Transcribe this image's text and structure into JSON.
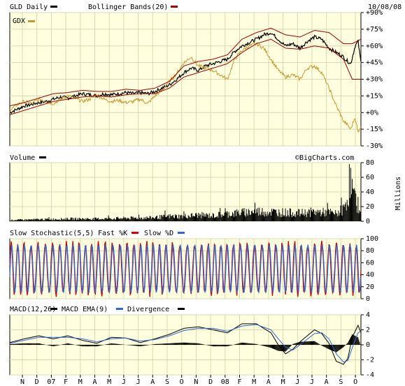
{
  "chart_data": [
    {
      "type": "line",
      "panel": "price",
      "date_label": "10/08/08",
      "watermark": "©BigCharts.com",
      "legend": [
        {
          "label": "GLD Daily",
          "color": "#000000"
        },
        {
          "label": "Bollinger Bands(20)",
          "color": "#990000"
        },
        {
          "label": "GDX",
          "color": "#c49a2c"
        }
      ],
      "y_unit": "%",
      "ylim": [
        -30,
        90
      ],
      "yticks": [
        "+90%",
        "+75%",
        "+60%",
        "+45%",
        "+30%",
        "+15%",
        "+0%",
        "-15%",
        "-30%"
      ],
      "series": [
        {
          "name": "GLD Daily",
          "color": "#000000",
          "points": [
            [
              0,
              0
            ],
            [
              5,
              3
            ],
            [
              10,
              6
            ],
            [
              14,
              7
            ],
            [
              20,
              9
            ],
            [
              25,
              10
            ],
            [
              30,
              12
            ],
            [
              35,
              14
            ],
            [
              40,
              13
            ],
            [
              45,
              15
            ],
            [
              50,
              17
            ],
            [
              55,
              16
            ],
            [
              60,
              15
            ],
            [
              65,
              17
            ],
            [
              70,
              16
            ],
            [
              75,
              17
            ],
            [
              80,
              18
            ],
            [
              85,
              17
            ],
            [
              90,
              18
            ],
            [
              95,
              17
            ],
            [
              100,
              19
            ],
            [
              105,
              22
            ],
            [
              110,
              25
            ],
            [
              115,
              30
            ],
            [
              120,
              36
            ],
            [
              125,
              40
            ],
            [
              130,
              38
            ],
            [
              135,
              42
            ],
            [
              140,
              44
            ],
            [
              145,
              46
            ],
            [
              150,
              48
            ],
            [
              155,
              55
            ],
            [
              160,
              60
            ],
            [
              165,
              63
            ],
            [
              170,
              66
            ],
            [
              175,
              70
            ],
            [
              180,
              72
            ],
            [
              185,
              66
            ],
            [
              190,
              60
            ],
            [
              195,
              62
            ],
            [
              200,
              58
            ],
            [
              205,
              64
            ],
            [
              210,
              68
            ],
            [
              215,
              66
            ],
            [
              220,
              58
            ],
            [
              225,
              54
            ],
            [
              228,
              52
            ],
            [
              230,
              50
            ],
            [
              232,
              47
            ],
            [
              235,
              44
            ],
            [
              238,
              60
            ],
            [
              240,
              64
            ],
            [
              242,
              45
            ]
          ]
        },
        {
          "name": "GDX",
          "color": "#c49a2c",
          "points": [
            [
              0,
              2
            ],
            [
              5,
              7
            ],
            [
              10,
              10
            ],
            [
              15,
              8
            ],
            [
              20,
              12
            ],
            [
              25,
              10
            ],
            [
              30,
              8
            ],
            [
              35,
              12
            ],
            [
              40,
              15
            ],
            [
              45,
              13
            ],
            [
              50,
              10
            ],
            [
              55,
              12
            ],
            [
              60,
              16
            ],
            [
              65,
              12
            ],
            [
              70,
              10
            ],
            [
              75,
              11
            ],
            [
              80,
              9
            ],
            [
              85,
              10
            ],
            [
              90,
              12
            ],
            [
              95,
              8
            ],
            [
              100,
              15
            ],
            [
              105,
              20
            ],
            [
              110,
              28
            ],
            [
              115,
              35
            ],
            [
              120,
              45
            ],
            [
              125,
              50
            ],
            [
              130,
              42
            ],
            [
              135,
              40
            ],
            [
              140,
              38
            ],
            [
              145,
              34
            ],
            [
              150,
              30
            ],
            [
              155,
              48
            ],
            [
              160,
              56
            ],
            [
              165,
              60
            ],
            [
              170,
              62
            ],
            [
              175,
              58
            ],
            [
              180,
              48
            ],
            [
              185,
              38
            ],
            [
              190,
              32
            ],
            [
              195,
              34
            ],
            [
              200,
              30
            ],
            [
              205,
              40
            ],
            [
              210,
              42
            ],
            [
              215,
              36
            ],
            [
              220,
              22
            ],
            [
              225,
              6
            ],
            [
              228,
              -2
            ],
            [
              230,
              -8
            ],
            [
              232,
              -10
            ],
            [
              235,
              -15
            ],
            [
              238,
              -4
            ],
            [
              240,
              -18
            ],
            [
              242,
              -12
            ]
          ]
        },
        {
          "name": "Bollinger Bands(20)",
          "color": "#990000",
          "points": [
            [
              0,
              -2
            ],
            [
              10,
              2
            ],
            [
              20,
              6
            ],
            [
              30,
              10
            ],
            [
              40,
              12
            ],
            [
              50,
              14
            ],
            [
              60,
              15
            ],
            [
              70,
              14
            ],
            [
              80,
              16
            ],
            [
              90,
              17
            ],
            [
              100,
              17
            ],
            [
              110,
              22
            ],
            [
              120,
              32
            ],
            [
              130,
              36
            ],
            [
              140,
              40
            ],
            [
              150,
              44
            ],
            [
              160,
              54
            ],
            [
              170,
              62
            ],
            [
              180,
              66
            ],
            [
              190,
              58
            ],
            [
              200,
              57
            ],
            [
              210,
              60
            ],
            [
              220,
              58
            ],
            [
              230,
              48
            ],
            [
              236,
              30
            ],
            [
              242,
              30
            ]
          ]
        },
        {
          "name": "Bollinger Bands(20)",
          "color": "#990000",
          "points": [
            [
              0,
              6
            ],
            [
              10,
              9
            ],
            [
              20,
              13
            ],
            [
              30,
              17
            ],
            [
              40,
              18
            ],
            [
              50,
              20
            ],
            [
              60,
              19
            ],
            [
              70,
              19
            ],
            [
              80,
              21
            ],
            [
              90,
              20
            ],
            [
              100,
              22
            ],
            [
              110,
              28
            ],
            [
              120,
              42
            ],
            [
              130,
              46
            ],
            [
              140,
              48
            ],
            [
              150,
              52
            ],
            [
              160,
              66
            ],
            [
              170,
              72
            ],
            [
              180,
              76
            ],
            [
              190,
              70
            ],
            [
              200,
              68
            ],
            [
              210,
              74
            ],
            [
              220,
              72
            ],
            [
              230,
              62
            ],
            [
              236,
              62
            ],
            [
              242,
              66
            ]
          ]
        }
      ]
    },
    {
      "type": "bar",
      "panel": "volume",
      "legend": [
        {
          "label": "Volume",
          "color": "#000000"
        }
      ],
      "ylabel": "Millions",
      "ylim": [
        0,
        80
      ],
      "yticks": [
        "80",
        "60",
        "40",
        "20",
        "0"
      ],
      "values": [
        [
          0,
          2
        ],
        [
          20,
          3
        ],
        [
          40,
          4
        ],
        [
          60,
          4
        ],
        [
          80,
          5
        ],
        [
          100,
          6
        ],
        [
          110,
          8
        ],
        [
          120,
          8
        ],
        [
          130,
          10
        ],
        [
          140,
          9
        ],
        [
          150,
          12
        ],
        [
          160,
          14
        ],
        [
          170,
          16
        ],
        [
          180,
          15
        ],
        [
          190,
          14
        ],
        [
          200,
          13
        ],
        [
          210,
          15
        ],
        [
          220,
          14
        ],
        [
          225,
          12
        ],
        [
          230,
          20
        ],
        [
          233,
          40
        ],
        [
          235,
          65
        ],
        [
          237,
          38
        ],
        [
          239,
          28
        ],
        [
          242,
          25
        ]
      ]
    },
    {
      "type": "line",
      "panel": "stochastic",
      "legend": [
        {
          "label": "Slow Stochastic(5,5)",
          "color": "#000000"
        },
        {
          "label": "Fast %K",
          "color": "#cc0000"
        },
        {
          "label": "Slow %D",
          "color": "#3366cc"
        }
      ],
      "ylim": [
        0,
        100
      ],
      "yticks": [
        "100",
        "80",
        "60",
        "40",
        "20",
        "0"
      ],
      "cycles": 52,
      "reference_lines": [
        20,
        80
      ]
    },
    {
      "type": "line",
      "panel": "macd",
      "legend": [
        {
          "label": "MACD(12,26)",
          "color": "#000000"
        },
        {
          "label": "MACD EMA(9)",
          "color": "#3366cc"
        },
        {
          "label": "Divergence",
          "color": "#000000"
        }
      ],
      "ylim": [
        -4,
        4
      ],
      "yticks": [
        "4",
        "2",
        "0",
        "-2",
        "-4"
      ],
      "macd": [
        [
          0,
          0.3
        ],
        [
          10,
          0.8
        ],
        [
          20,
          1.2
        ],
        [
          30,
          0.8
        ],
        [
          40,
          1.2
        ],
        [
          50,
          0.6
        ],
        [
          60,
          0.2
        ],
        [
          70,
          1.0
        ],
        [
          80,
          0.9
        ],
        [
          90,
          0.3
        ],
        [
          100,
          0.8
        ],
        [
          110,
          1.4
        ],
        [
          120,
          2.2
        ],
        [
          130,
          2.4
        ],
        [
          140,
          2.0
        ],
        [
          150,
          1.6
        ],
        [
          160,
          2.8
        ],
        [
          170,
          2.8
        ],
        [
          180,
          1.6
        ],
        [
          185,
          0.0
        ],
        [
          190,
          -1.2
        ],
        [
          195,
          -0.6
        ],
        [
          200,
          0.4
        ],
        [
          210,
          2.0
        ],
        [
          215,
          1.5
        ],
        [
          220,
          0.2
        ],
        [
          225,
          -2.2
        ],
        [
          230,
          -2.6
        ],
        [
          233,
          -1.8
        ],
        [
          236,
          1.0
        ],
        [
          240,
          2.6
        ],
        [
          242,
          1.6
        ]
      ],
      "signal": [
        [
          0,
          0.2
        ],
        [
          10,
          0.6
        ],
        [
          20,
          1.0
        ],
        [
          30,
          1.0
        ],
        [
          40,
          1.0
        ],
        [
          50,
          0.8
        ],
        [
          60,
          0.4
        ],
        [
          70,
          0.8
        ],
        [
          80,
          0.9
        ],
        [
          90,
          0.5
        ],
        [
          100,
          0.7
        ],
        [
          110,
          1.2
        ],
        [
          120,
          1.9
        ],
        [
          130,
          2.2
        ],
        [
          140,
          2.2
        ],
        [
          150,
          1.8
        ],
        [
          160,
          2.5
        ],
        [
          170,
          2.7
        ],
        [
          180,
          2.0
        ],
        [
          185,
          0.8
        ],
        [
          190,
          -0.3
        ],
        [
          195,
          -0.7
        ],
        [
          200,
          0.0
        ],
        [
          210,
          1.5
        ],
        [
          215,
          1.6
        ],
        [
          220,
          0.8
        ],
        [
          225,
          -1.2
        ],
        [
          230,
          -2.3
        ],
        [
          233,
          -2.1
        ],
        [
          236,
          -0.4
        ],
        [
          240,
          1.6
        ],
        [
          242,
          1.8
        ]
      ],
      "xticks": [
        "N",
        "D",
        "07",
        "F",
        "M",
        "A",
        "M",
        "J",
        "J",
        "A",
        "S",
        "O",
        "N",
        "D",
        "08",
        "F",
        "M",
        "A",
        "M",
        "J",
        "J",
        "A",
        "S",
        "O"
      ]
    }
  ]
}
